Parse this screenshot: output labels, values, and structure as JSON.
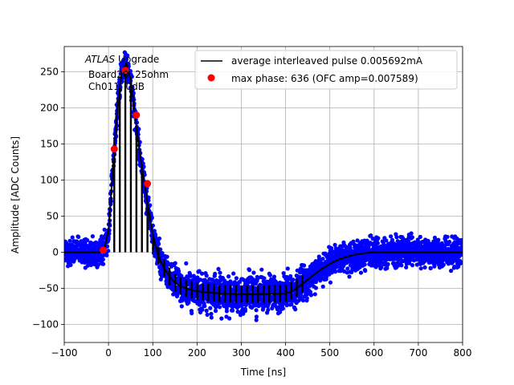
{
  "chart_data": {
    "type": "scatter",
    "title": "",
    "xlabel": "Time [ns]",
    "ylabel": "Amplitude [ADC Counts]",
    "xlim": [
      -100,
      800
    ],
    "ylim": [
      -125,
      285
    ],
    "xticks": [
      -100,
      0,
      100,
      200,
      300,
      400,
      500,
      600,
      700,
      800
    ],
    "yticks": [
      -100,
      -50,
      0,
      50,
      100,
      150,
      200,
      250
    ],
    "xtick_labels": [
      "−100",
      "0",
      "100",
      "200",
      "300",
      "400",
      "500",
      "600",
      "700",
      "800"
    ],
    "ytick_labels": [
      "−100",
      "−50",
      "0",
      "50",
      "100",
      "150",
      "200",
      "250"
    ],
    "grid": true,
    "legend_position": "top-right",
    "annotation": {
      "italic": "ATLAS",
      "rest": " Upgrade",
      "line2": "Board20, 25ohm",
      "line3": "Ch011, 0dB"
    },
    "series": [
      {
        "name": "average interleaved pulse 0.005692mA",
        "kind": "line",
        "color": "#000000",
        "x": [
          -100,
          -20,
          -10,
          0,
          10,
          20,
          30,
          40,
          50,
          60,
          70,
          80,
          90,
          100,
          110,
          120,
          130,
          140,
          150,
          160,
          180,
          200,
          250,
          300,
          350,
          400,
          420,
          440,
          460,
          480,
          500,
          520,
          540,
          560,
          580,
          600,
          650,
          700,
          750,
          800
        ],
        "y": [
          0,
          0,
          3,
          30,
          115,
          200,
          250,
          262,
          240,
          190,
          140,
          100,
          60,
          25,
          0,
          -15,
          -27,
          -35,
          -42,
          -46,
          -51,
          -54,
          -57,
          -58,
          -58,
          -57,
          -52,
          -43,
          -33,
          -24,
          -16,
          -10,
          -6,
          -3,
          -1,
          0,
          0,
          0,
          0,
          0
        ]
      },
      {
        "name": "max phase: 636 (OFC amp=0.007589)",
        "kind": "points",
        "color": "#ff0000",
        "x": [
          -12,
          13,
          38,
          63,
          88
        ],
        "y": [
          3,
          143,
          252,
          190,
          95
        ]
      },
      {
        "name": "",
        "kind": "samples",
        "color": "#0000ff",
        "noise": 13
      }
    ]
  }
}
